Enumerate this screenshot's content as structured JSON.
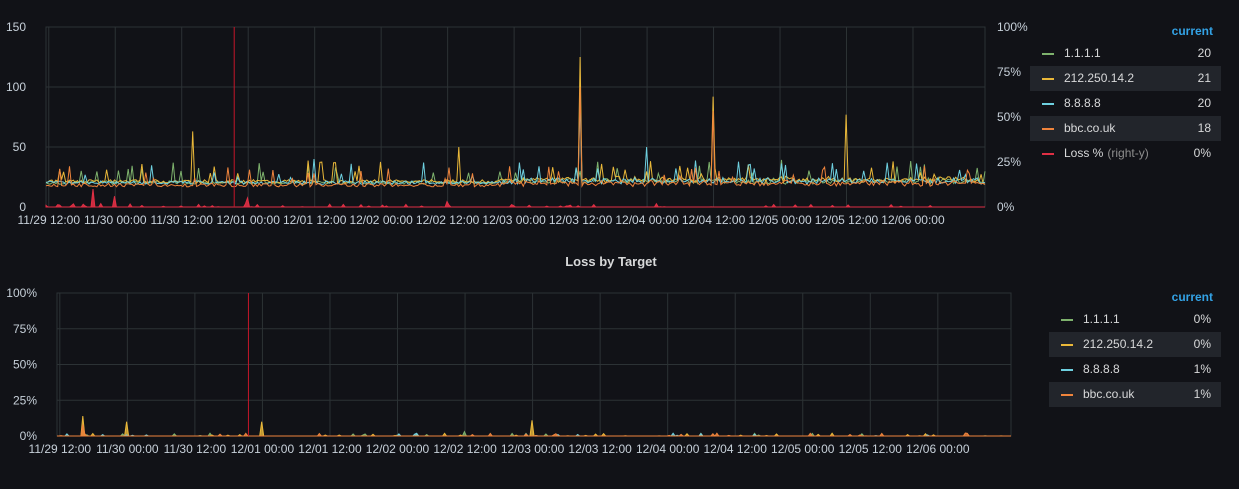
{
  "colors": {
    "series_1111": "#7eb26d",
    "series_212": "#eab839",
    "series_8888": "#6ed0e0",
    "series_bbc": "#ef843c",
    "series_loss": "#e02f44",
    "grid": "#2c3235",
    "legend_header": "#33a2e5"
  },
  "panels": [
    {
      "title": "",
      "legend_header": "current",
      "legend": [
        {
          "name": "1.1.1.1",
          "sub": "",
          "value": "20",
          "color": "#7eb26d"
        },
        {
          "name": "212.250.14.2",
          "sub": "",
          "value": "21",
          "color": "#eab839"
        },
        {
          "name": "8.8.8.8",
          "sub": "",
          "value": "20",
          "color": "#6ed0e0"
        },
        {
          "name": "bbc.co.uk",
          "sub": "",
          "value": "18",
          "color": "#ef843c"
        },
        {
          "name": "Loss %",
          "sub": "(right-y)",
          "value": "0%",
          "color": "#e02f44"
        }
      ]
    },
    {
      "title": "Loss by Target",
      "legend_header": "current",
      "legend": [
        {
          "name": "1.1.1.1",
          "sub": "",
          "value": "0%",
          "color": "#7eb26d"
        },
        {
          "name": "212.250.14.2",
          "sub": "",
          "value": "0%",
          "color": "#eab839"
        },
        {
          "name": "8.8.8.8",
          "sub": "",
          "value": "1%",
          "color": "#6ed0e0"
        },
        {
          "name": "bbc.co.uk",
          "sub": "",
          "value": "1%",
          "color": "#ef843c"
        }
      ]
    }
  ],
  "chart_data": [
    {
      "type": "line",
      "title": "",
      "x_range": [
        "11/29 12:00",
        "12/06 12:00"
      ],
      "x_tick_labels": [
        "11/29 12:00",
        "11/30 00:00",
        "11/30 12:00",
        "12/01 00:00",
        "12/01 12:00",
        "12/02 00:00",
        "12/02 12:00",
        "12/03 00:00",
        "12/03 12:00",
        "12/04 00:00",
        "12/04 12:00",
        "12/05 00:00",
        "12/05 12:00",
        "12/06 00:00"
      ],
      "y_tick_labels": [
        "0",
        "50",
        "100",
        "150"
      ],
      "ylim": [
        0,
        150
      ],
      "y2_tick_labels": [
        "0%",
        "25%",
        "50%",
        "75%",
        "100%"
      ],
      "y2lim": [
        0,
        100
      ],
      "grid": true,
      "legend_position": "right",
      "annotation_x": "12/01 00:00",
      "series": [
        {
          "name": "1.1.1.1",
          "axis": "left",
          "baseline": 20,
          "current": 20,
          "spikes": [
            [
              "11/30 12:00",
              30
            ],
            [
              "12/03 12:00",
              30
            ]
          ]
        },
        {
          "name": "212.250.14.2",
          "axis": "left",
          "baseline": 21,
          "current": 21,
          "spikes": [
            [
              "11/30 14:00",
              63
            ],
            [
              "12/02 14:00",
              50
            ],
            [
              "12/03 12:00",
              125
            ],
            [
              "12/04 12:00",
              92
            ],
            [
              "12/05 12:00",
              77
            ]
          ]
        },
        {
          "name": "8.8.8.8",
          "axis": "left",
          "baseline": 20,
          "current": 20,
          "spikes": [
            [
              "12/03 12:00",
              90
            ],
            [
              "12/01 12:00",
              40
            ],
            [
              "12/04 00:00",
              50
            ]
          ]
        },
        {
          "name": "bbc.co.uk",
          "axis": "left",
          "baseline": 18,
          "current": 18,
          "spikes": [
            [
              "12/03 12:00",
              100
            ],
            [
              "12/04 12:00",
              80
            ]
          ]
        },
        {
          "name": "Loss %",
          "axis": "right",
          "baseline": 0,
          "current": 0,
          "spikes": [
            [
              "11/29 20:00",
              10
            ],
            [
              "11/30 00:00",
              6
            ],
            [
              "12/01 00:00",
              5
            ],
            [
              "12/02 12:00",
              3
            ]
          ]
        }
      ]
    },
    {
      "type": "area",
      "title": "Loss by Target",
      "x_range": [
        "11/29 12:00",
        "12/06 12:00"
      ],
      "x_tick_labels": [
        "11/29 12:00",
        "11/30 00:00",
        "11/30 12:00",
        "12/01 00:00",
        "12/01 12:00",
        "12/02 00:00",
        "12/02 12:00",
        "12/03 00:00",
        "12/03 12:00",
        "12/04 00:00",
        "12/04 12:00",
        "12/05 00:00",
        "12/05 12:00",
        "12/06 00:00"
      ],
      "y_tick_labels": [
        "0%",
        "25%",
        "50%",
        "75%",
        "100%"
      ],
      "ylim": [
        0,
        100
      ],
      "grid": true,
      "legend_position": "right",
      "annotation_x": "12/01 00:00",
      "series": [
        {
          "name": "1.1.1.1",
          "current": 0,
          "spikes": [
            [
              "12/02 12:00",
              3
            ]
          ]
        },
        {
          "name": "212.250.14.2",
          "current": 0,
          "spikes": [
            [
              "11/29 16:00",
              14
            ],
            [
              "11/30 00:00",
              10
            ],
            [
              "12/01 00:00",
              10
            ],
            [
              "12/03 00:00",
              11
            ]
          ]
        },
        {
          "name": "8.8.8.8",
          "current": 1,
          "spikes": []
        },
        {
          "name": "bbc.co.uk",
          "current": 1,
          "spikes": [
            [
              "11/29 16:00",
              8
            ]
          ]
        }
      ]
    }
  ]
}
